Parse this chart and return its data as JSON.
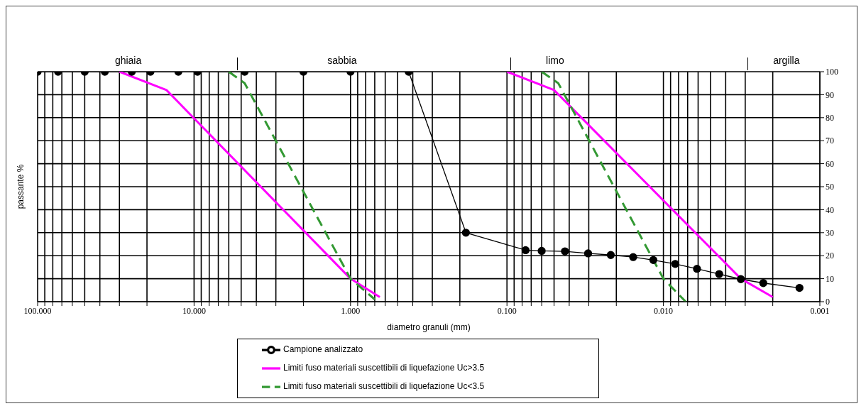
{
  "chart_data": {
    "type": "line",
    "xlabel": "diametro granuli (mm)",
    "ylabel": "passante %",
    "log": "x",
    "xlim": [
      100,
      0.001
    ],
    "xticks": [
      {
        "value": 100,
        "label": "100.000"
      },
      {
        "value": 90,
        "label": null
      },
      {
        "value": 80,
        "label": null
      },
      {
        "value": 70,
        "label": null
      },
      {
        "value": 60,
        "label": null
      },
      {
        "value": 50,
        "label": null
      },
      {
        "value": 40,
        "label": null
      },
      {
        "value": 30,
        "label": null
      },
      {
        "value": 20,
        "label": null
      },
      {
        "value": 10,
        "label": "10.000"
      },
      {
        "value": 9,
        "label": null
      },
      {
        "value": 8,
        "label": null
      },
      {
        "value": 7,
        "label": null
      },
      {
        "value": 6,
        "label": null
      },
      {
        "value": 5,
        "label": null
      },
      {
        "value": 4,
        "label": null
      },
      {
        "value": 3,
        "label": null
      },
      {
        "value": 2,
        "label": null
      },
      {
        "value": 1,
        "label": "1.000"
      },
      {
        "value": 0.9,
        "label": null
      },
      {
        "value": 0.8,
        "label": null
      },
      {
        "value": 0.7,
        "label": null
      },
      {
        "value": 0.6,
        "label": null
      },
      {
        "value": 0.5,
        "label": null
      },
      {
        "value": 0.4,
        "label": null
      },
      {
        "value": 0.3,
        "label": null
      },
      {
        "value": 0.2,
        "label": null
      },
      {
        "value": 0.1,
        "label": "0.100"
      },
      {
        "value": 0.09,
        "label": null
      },
      {
        "value": 0.08,
        "label": null
      },
      {
        "value": 0.07,
        "label": null
      },
      {
        "value": 0.06,
        "label": null
      },
      {
        "value": 0.05,
        "label": null
      },
      {
        "value": 0.04,
        "label": null
      },
      {
        "value": 0.03,
        "label": null
      },
      {
        "value": 0.02,
        "label": null
      },
      {
        "value": 0.01,
        "label": "0.010"
      },
      {
        "value": 0.009,
        "label": null
      },
      {
        "value": 0.008,
        "label": null
      },
      {
        "value": 0.007,
        "label": null
      },
      {
        "value": 0.006,
        "label": null
      },
      {
        "value": 0.005,
        "label": null
      },
      {
        "value": 0.004,
        "label": null
      },
      {
        "value": 0.003,
        "label": null
      },
      {
        "value": 0.002,
        "label": null
      },
      {
        "value": 0.001,
        "label": "0.001"
      }
    ],
    "ylim": [
      0,
      100
    ],
    "yticks": [
      0,
      10,
      20,
      30,
      40,
      50,
      60,
      70,
      80,
      90,
      100
    ],
    "grid": true,
    "legend": "bottom",
    "annotations": [
      "ghiaia",
      "sabbia",
      "limo",
      "argilla"
    ],
    "series": [
      {
        "name": "Campione analizzato",
        "color": "#000000",
        "marker": "circle",
        "line_style": "solid",
        "x": [
          100,
          74,
          50,
          37.2,
          25,
          19,
          12.6,
          9.5,
          4.75,
          2,
          1,
          0.425,
          0.183,
          0.076,
          0.06,
          0.0426,
          0.0303,
          0.0217,
          0.0156,
          0.0116,
          0.0084,
          0.0061,
          0.0044,
          0.0032,
          0.0023,
          0.00135
        ],
        "values": [
          100,
          100,
          100,
          100,
          100,
          100,
          100,
          100,
          100,
          100,
          100,
          100,
          30,
          22.4,
          22.1,
          21.9,
          21,
          20.3,
          19.4,
          18.1,
          16.4,
          14.3,
          12,
          9.8,
          8.1,
          6
        ]
      },
      {
        "name": "Limiti fuso materiali suscettibili di liquefazione Uc>3.5",
        "color": "#ff00ff",
        "marker": "none",
        "line_style": "solid",
        "x": [
          30,
          15,
          1,
          0.65,
          null,
          0.1,
          0.05,
          0.0032,
          0.002
        ],
        "values": [
          100,
          92,
          10,
          2,
          null,
          100,
          92,
          10,
          2
        ]
      },
      {
        "name": "Limiti fuso materiali suscettibili di liquefazione Uc<3.5",
        "color": "#339933",
        "marker": "none",
        "line_style": "dashed",
        "x": [
          6,
          4.75,
          1,
          0.7,
          null,
          0.06,
          0.047,
          0.01,
          0.0072
        ],
        "values": [
          100,
          95,
          10,
          1,
          null,
          100,
          95,
          10,
          0
        ]
      }
    ]
  }
}
